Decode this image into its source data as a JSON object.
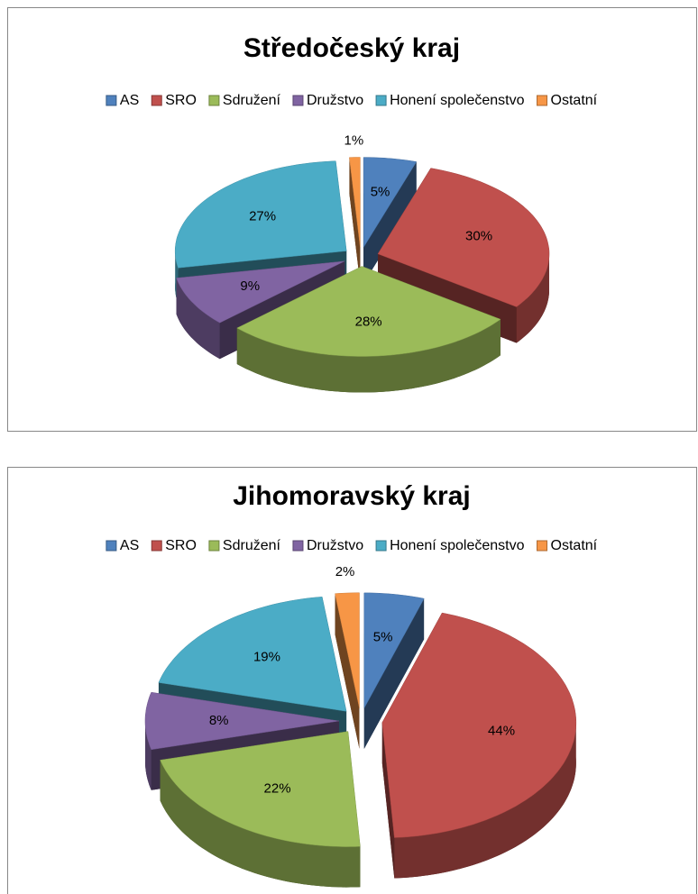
{
  "chart_data": [
    {
      "type": "pie",
      "title": "Středočeský kraj",
      "legend": "top",
      "categories": [
        "AS",
        "SRO",
        "Sdružení",
        "Družstvo",
        "Honení společenstvo",
        "Ostatní"
      ],
      "values": [
        5,
        30,
        28,
        9,
        27,
        1
      ],
      "value_labels": [
        "5%",
        "30%",
        "28%",
        "9%",
        "27%",
        "1%"
      ],
      "colors": [
        "#4f81bd",
        "#c0504d",
        "#9bbb59",
        "#8064a2",
        "#4bacc6",
        "#f79646"
      ]
    },
    {
      "type": "pie",
      "title": "Jihomoravský kraj",
      "legend": "top",
      "categories": [
        "AS",
        "SRO",
        "Sdružení",
        "Družstvo",
        "Honení společenstvo",
        "Ostatní"
      ],
      "values": [
        5,
        44,
        22,
        8,
        19,
        2
      ],
      "value_labels": [
        "5%",
        "44%",
        "22%",
        "8%",
        "19%",
        "2%"
      ],
      "colors": [
        "#4f81bd",
        "#c0504d",
        "#9bbb59",
        "#8064a2",
        "#4bacc6",
        "#f79646"
      ]
    }
  ]
}
